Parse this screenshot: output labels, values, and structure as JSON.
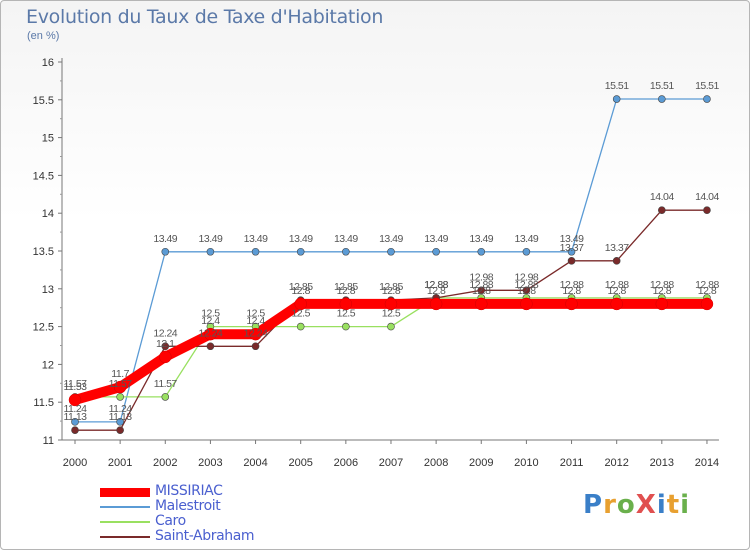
{
  "title": "Evolution du Taux de Taxe d'Habitation",
  "subtitle": "(en %)",
  "logo": {
    "text": "ProXiti",
    "colors": [
      "#3a7fc8",
      "#e8a030",
      "#6ab04c",
      "#e05050",
      "#3a7fc8",
      "#e8a030",
      "#6ab04c"
    ]
  },
  "chart_data": {
    "type": "line",
    "title": "Evolution du Taux de Taxe d'Habitation",
    "ylabel": "(en %)",
    "xlabel": "",
    "ylim": [
      11,
      16
    ],
    "yticks": [
      "11",
      "11.5",
      "12",
      "12.5",
      "13",
      "13.5",
      "14",
      "14.5",
      "15",
      "15.5",
      "16"
    ],
    "x": [
      "2000",
      "2001",
      "2002",
      "2003",
      "2004",
      "2005",
      "2006",
      "2007",
      "2008",
      "2009",
      "2010",
      "2011",
      "2012",
      "2013",
      "2014"
    ],
    "series": [
      {
        "name": "MISSIRIAC",
        "color": "#ff0000",
        "values": [
          11.53,
          11.7,
          12.1,
          12.4,
          12.4,
          12.8,
          12.8,
          12.8,
          12.8,
          12.8,
          12.8,
          12.8,
          12.8,
          12.8,
          12.8
        ],
        "labels": [
          "11.53",
          "11.7",
          "12.1",
          "12.4",
          "12.4",
          "12.8",
          "12.8",
          "12.8",
          "12.8",
          "12.8",
          "12.8",
          "12.8",
          "12.8",
          "12.8",
          "12.8"
        ]
      },
      {
        "name": "Malestroit",
        "color": "#5b9bd5",
        "values": [
          11.24,
          11.24,
          13.49,
          13.49,
          13.49,
          13.49,
          13.49,
          13.49,
          13.49,
          13.49,
          13.49,
          13.49,
          15.51,
          15.51,
          15.51
        ],
        "labels": [
          "11.24",
          "11.24",
          "13.49",
          "13.49",
          "13.49",
          "13.49",
          "13.49",
          "13.49",
          "13.49",
          "13.49",
          "13.49",
          "13.49",
          "15.51",
          "15.51",
          "15.51"
        ]
      },
      {
        "name": "Caro",
        "color": "#99e060",
        "values": [
          11.57,
          11.57,
          11.57,
          12.5,
          12.5,
          12.5,
          12.5,
          12.5,
          12.88,
          12.88,
          12.88,
          12.88,
          12.88,
          12.88,
          12.88
        ],
        "labels": [
          "11.57",
          "11.57",
          "11.57",
          "12.5",
          "12.5",
          "12.5",
          "12.5",
          "12.5",
          "12.88",
          "12.88",
          "12.88",
          "12.88",
          "12.88",
          "12.88",
          "12.88"
        ]
      },
      {
        "name": "Saint-Abraham",
        "color": "#7a2a2a",
        "values": [
          11.13,
          11.13,
          12.24,
          12.24,
          12.24,
          12.85,
          12.85,
          12.85,
          12.88,
          12.98,
          12.98,
          13.37,
          13.37,
          14.04,
          14.04
        ],
        "labels": [
          "11.13",
          "11.13",
          "12.24",
          "12.24",
          "12.24",
          "12.85",
          "12.85",
          "12.85",
          "12.88",
          "12.98",
          "12.98",
          "13.37",
          "13.37",
          "14.04",
          "14.04"
        ]
      }
    ],
    "legend_position": "bottom-left",
    "grid": false
  }
}
